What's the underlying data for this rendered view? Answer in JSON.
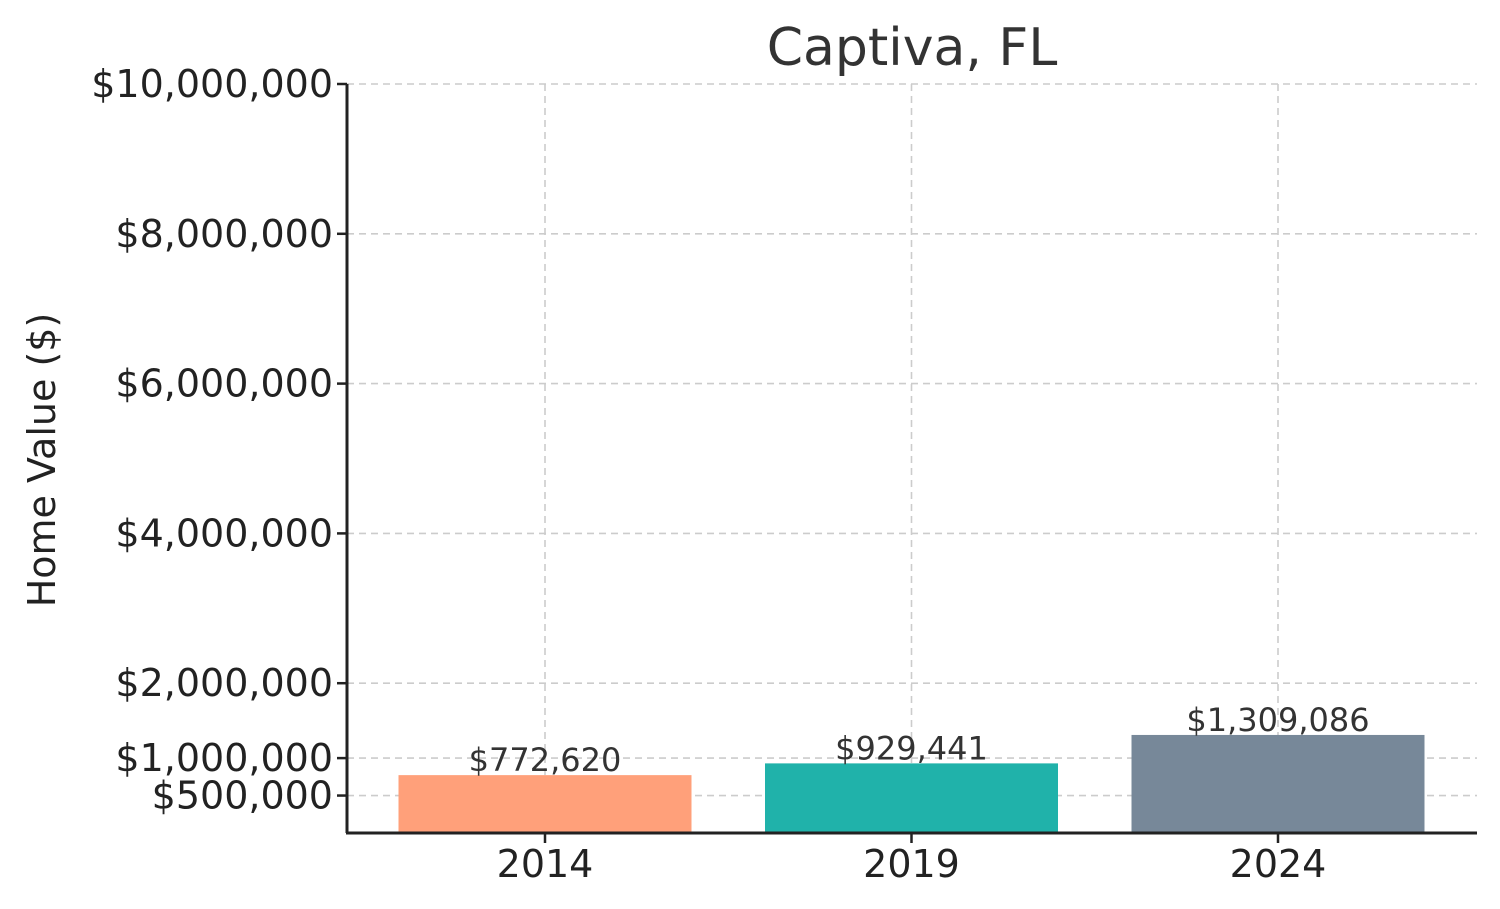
{
  "chart_data": {
    "type": "bar",
    "title": "Captiva, FL",
    "xlabel": "",
    "ylabel": "Home Value ($)",
    "categories": [
      "2014",
      "2019",
      "2024"
    ],
    "values": [
      772620,
      929441,
      1309086
    ],
    "data_labels": [
      "$772,620",
      "$929,441",
      "$1,309,086"
    ],
    "colors": [
      "#FFA07A",
      "#20B2AA",
      "#778899"
    ],
    "ylim": [
      0,
      10000000
    ],
    "yticks": [
      500000,
      1000000,
      2000000,
      4000000,
      6000000,
      8000000,
      10000000
    ],
    "ytick_labels": [
      "$500,000",
      "$1,000,000",
      "$2,000,000",
      "$4,000,000",
      "$6,000,000",
      "$8,000,000",
      "$10,000,000"
    ],
    "grid": true
  }
}
